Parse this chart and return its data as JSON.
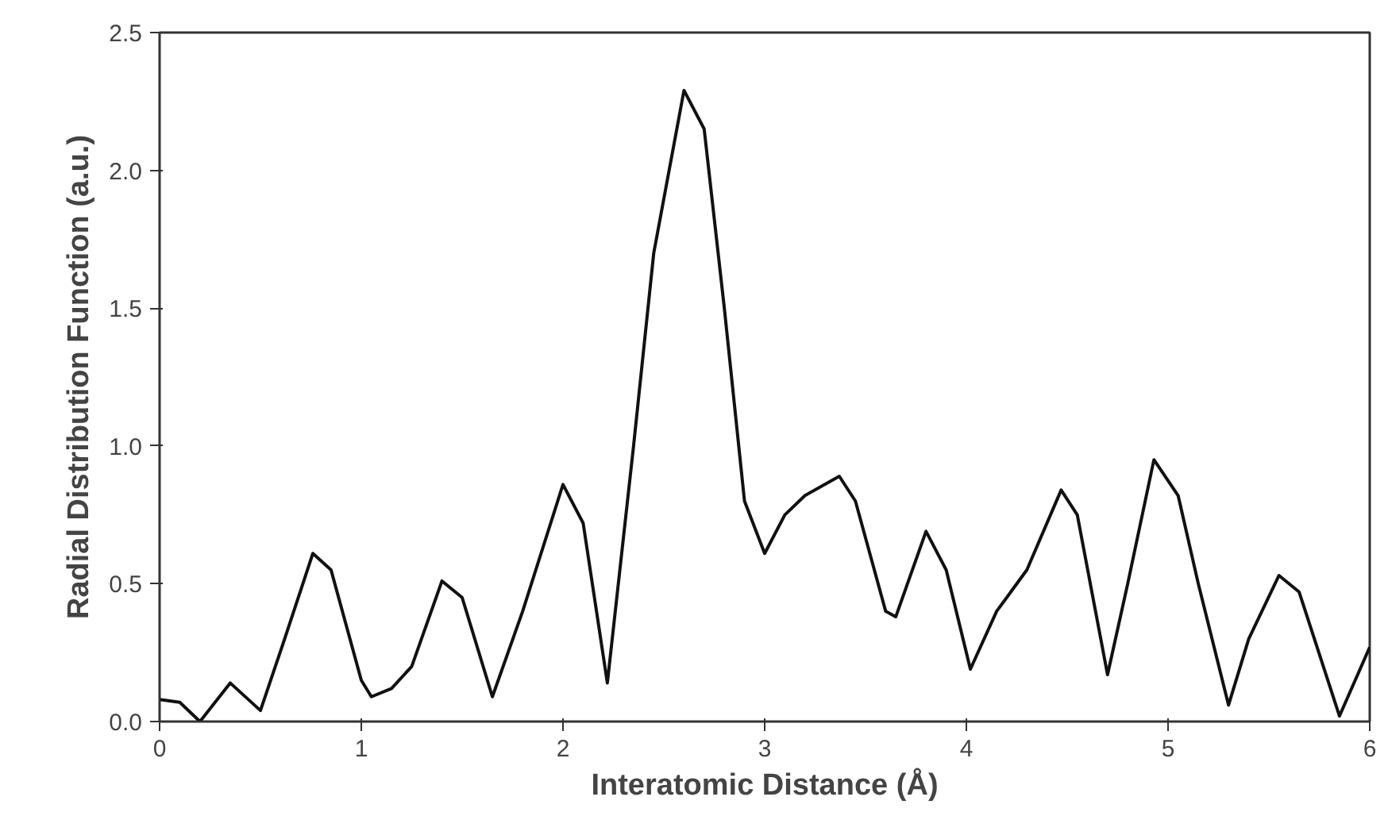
{
  "chart_data": {
    "type": "line",
    "xlabel": "Interatomic Distance (Å)",
    "ylabel": "Radial Distribution Function (a.u.)",
    "xlim": [
      0,
      6
    ],
    "ylim": [
      0,
      2.5
    ],
    "xticks": [
      0,
      1,
      2,
      3,
      4,
      5,
      6
    ],
    "yticks": [
      {
        "value": 0,
        "label": "0.0"
      },
      {
        "value": 0.5,
        "label": "0.5"
      },
      {
        "value": 1,
        "label": "1.0"
      },
      {
        "value": 1.5,
        "label": "1.5"
      },
      {
        "value": 2,
        "label": "2.0"
      },
      {
        "value": 2.5,
        "label": "2.5"
      }
    ],
    "grid": false,
    "marker": "none",
    "line_style": "solid",
    "series": [
      {
        "color": "#111111",
        "x": [
          0,
          0.1,
          0.2,
          0.35,
          0.5,
          0.62,
          0.76,
          0.85,
          1.0,
          1.05,
          1.15,
          1.25,
          1.4,
          1.5,
          1.65,
          1.8,
          2.0,
          2.1,
          2.22,
          2.35,
          2.45,
          2.6,
          2.7,
          2.8,
          2.9,
          3.0,
          3.1,
          3.2,
          3.37,
          3.45,
          3.6,
          3.65,
          3.8,
          3.9,
          4.02,
          4.15,
          4.3,
          4.47,
          4.55,
          4.7,
          4.8,
          4.93,
          5.05,
          5.15,
          5.3,
          5.4,
          5.55,
          5.65,
          5.85,
          6.0
        ],
        "values": [
          0.08,
          0.07,
          0.0,
          0.14,
          0.04,
          0.3,
          0.61,
          0.55,
          0.15,
          0.09,
          0.12,
          0.2,
          0.51,
          0.45,
          0.09,
          0.4,
          0.86,
          0.72,
          0.14,
          1.0,
          1.7,
          2.29,
          2.15,
          1.5,
          0.8,
          0.61,
          0.75,
          0.82,
          0.89,
          0.8,
          0.4,
          0.38,
          0.69,
          0.55,
          0.19,
          0.4,
          0.55,
          0.84,
          0.75,
          0.17,
          0.5,
          0.95,
          0.82,
          0.5,
          0.06,
          0.3,
          0.53,
          0.47,
          0.02,
          0.27
        ]
      }
    ]
  }
}
